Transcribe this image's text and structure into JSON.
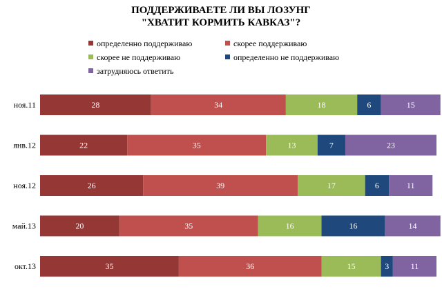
{
  "title_lines": [
    "ПОДДЕРЖИВАЕТЕ ЛИ ВЫ ЛОЗУНГ",
    "\"ХВАТИТ КОРМИТЬ КАВКАЗ\"?"
  ],
  "chart_data": {
    "type": "bar",
    "orientation": "horizontal",
    "stacked": true,
    "title": "ПОДДЕРЖИВАЕТЕ ЛИ ВЫ ЛОЗУНГ \"ХВАТИТ КОРМИТЬ КАВКАЗ\"?",
    "categories": [
      "ноя.11",
      "янв.12",
      "ноя.12",
      "май.13",
      "окт.13"
    ],
    "series": [
      {
        "name": "определенно поддерживаю",
        "color": "#953735",
        "values": [
          28,
          22,
          26,
          20,
          35
        ]
      },
      {
        "name": "скорее поддерживаю",
        "color": "#c0504d",
        "values": [
          34,
          35,
          39,
          35,
          36
        ]
      },
      {
        "name": "скорее не поддерживаю",
        "color": "#9bbb59",
        "values": [
          18,
          13,
          17,
          16,
          15
        ]
      },
      {
        "name": "определенно не поддерживаю",
        "color": "#1f497d",
        "values": [
          6,
          7,
          6,
          16,
          3
        ]
      },
      {
        "name": "затрудняюсь ответить",
        "color": "#8064a2",
        "values": [
          15,
          23,
          11,
          14,
          11
        ]
      }
    ],
    "xlim": [
      0,
      100
    ],
    "grid": false,
    "legend_position": "top",
    "data_labels": true
  }
}
